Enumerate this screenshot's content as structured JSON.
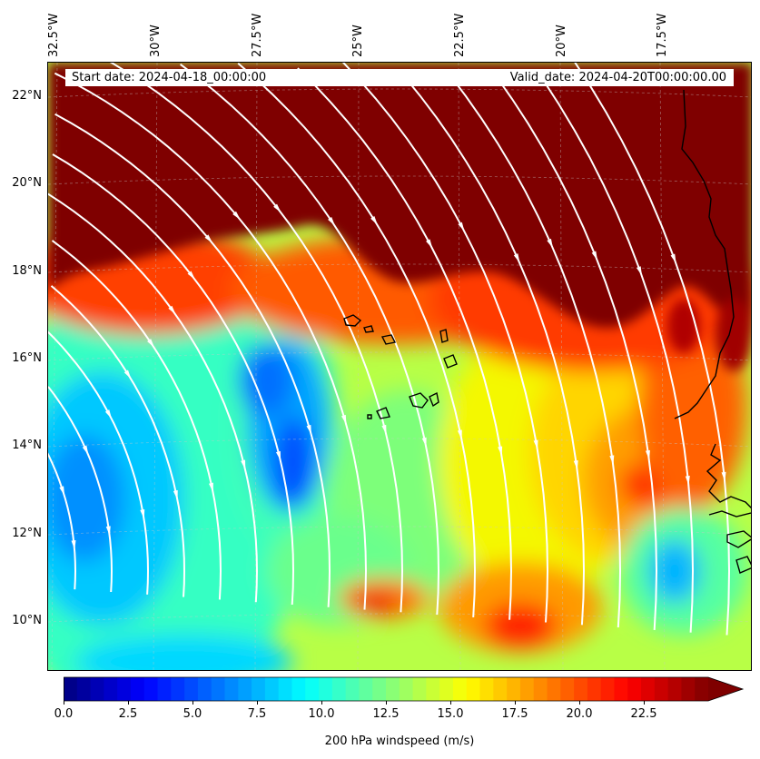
{
  "header": {
    "start_date": "Start date: 2024-04-18_00:00:00",
    "valid_date": "Valid_date: 2024-04-20T00:00:00.00"
  },
  "map": {
    "lon_labels": [
      "32.5°W",
      "30°W",
      "27.5°W",
      "25°W",
      "22.5°W",
      "20°W",
      "17.5°W"
    ],
    "lat_labels": [
      "22°N",
      "20°N",
      "18°N",
      "16°N",
      "14°N",
      "12°N",
      "10°N"
    ],
    "lon_range": [
      -32.5,
      -15
    ],
    "lat_range": [
      8.9,
      22.8
    ],
    "gridlines": true,
    "field": "200 hPa windspeed",
    "streamline_color": "#ffffff",
    "coastline_color": "#000000"
  },
  "colorbar": {
    "ticks": [
      "0.0",
      "2.5",
      "5.0",
      "7.5",
      "10.0",
      "12.5",
      "15.0",
      "17.5",
      "20.0",
      "22.5"
    ],
    "min": 0,
    "max": 25,
    "extend": "max",
    "label": "200 hPa windspeed (m/s)",
    "colormap": "jet"
  }
}
